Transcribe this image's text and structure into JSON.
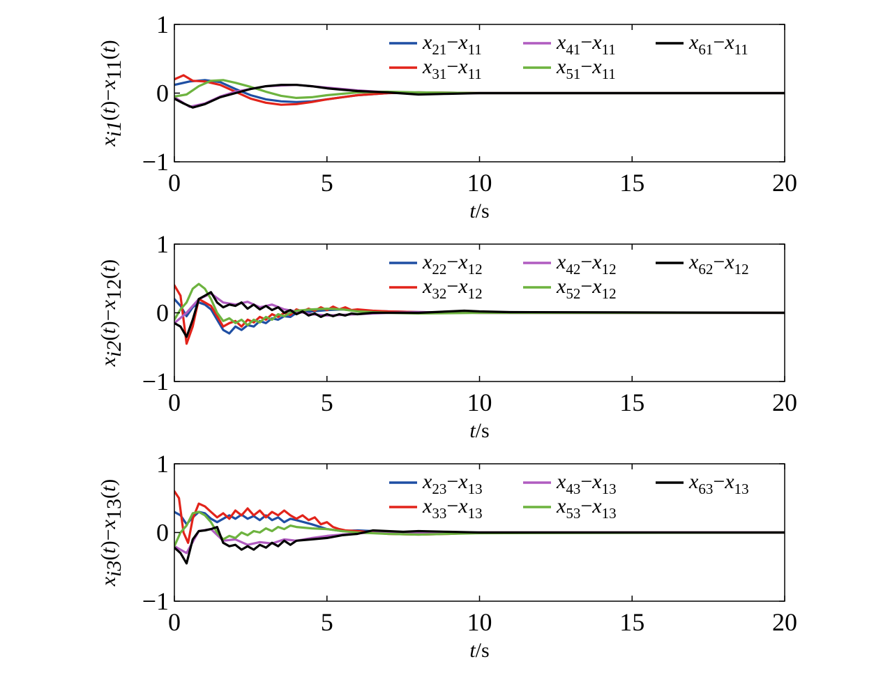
{
  "chart_data": [
    {
      "type": "line",
      "xlabel": {
        "var": "t",
        "unit": "/s"
      },
      "ylabel": {
        "a": "x",
        "a_sub": "i1",
        "b": "(t)−x",
        "b_sub": "11",
        "c": "(t)"
      },
      "xlim": [
        0,
        20
      ],
      "ylim": [
        -1,
        1
      ],
      "xticks": [
        "0",
        "5",
        "10",
        "15",
        "20"
      ],
      "yticks": [
        "−1",
        "0",
        "1"
      ],
      "legend_position": "top-right",
      "series": [
        {
          "name": "x21−x11",
          "sub_a": "21",
          "sub_b": "11",
          "color": "#1f4fa3",
          "x": [
            0,
            0.5,
            1,
            1.5,
            2,
            2.5,
            3,
            3.5,
            4,
            4.5,
            5,
            5.5,
            6,
            7,
            8,
            10,
            20
          ],
          "y": [
            0.12,
            0.17,
            0.19,
            0.16,
            0.06,
            -0.03,
            -0.09,
            -0.12,
            -0.13,
            -0.12,
            -0.09,
            -0.06,
            -0.03,
            0,
            0.01,
            0,
            0
          ]
        },
        {
          "name": "x31−x11",
          "sub_a": "31",
          "sub_b": "11",
          "color": "#e2231a",
          "x": [
            0,
            0.3,
            0.6,
            1,
            1.5,
            2,
            2.5,
            3,
            3.5,
            4,
            4.5,
            5,
            5.5,
            6,
            7,
            8,
            10,
            20
          ],
          "y": [
            0.2,
            0.26,
            0.18,
            0.17,
            0.12,
            0.02,
            -0.08,
            -0.14,
            -0.17,
            -0.16,
            -0.13,
            -0.09,
            -0.06,
            -0.03,
            0,
            0.01,
            0,
            0
          ]
        },
        {
          "name": "x41−x11",
          "sub_a": "41",
          "sub_b": "11",
          "color": "#b05cc0",
          "x": [
            0,
            0.5,
            1,
            1.5,
            2,
            3,
            4,
            5,
            6,
            7,
            8,
            10,
            20
          ],
          "y": [
            -0.06,
            -0.2,
            -0.15,
            -0.05,
            0.02,
            0.1,
            0.12,
            0.08,
            0.04,
            0.01,
            -0.01,
            0,
            0
          ]
        },
        {
          "name": "x51−x11",
          "sub_a": "51",
          "sub_b": "11",
          "color": "#6db33f",
          "x": [
            0,
            0.4,
            0.8,
            1.2,
            1.6,
            2,
            2.5,
            3,
            3.5,
            4,
            4.5,
            5,
            5.5,
            6,
            7,
            8,
            10,
            20
          ],
          "y": [
            -0.05,
            -0.02,
            0.1,
            0.18,
            0.19,
            0.15,
            0.09,
            0.02,
            -0.04,
            -0.07,
            -0.06,
            -0.03,
            -0.01,
            0.01,
            0.02,
            0.01,
            0,
            0
          ]
        },
        {
          "name": "x61−x11",
          "sub_a": "61",
          "sub_b": "11",
          "color": "#000000",
          "x": [
            0,
            0.3,
            0.6,
            1,
            1.5,
            2,
            2.5,
            3,
            3.5,
            4,
            4.5,
            5,
            5.5,
            6,
            7,
            8,
            9,
            10,
            20
          ],
          "y": [
            -0.08,
            -0.15,
            -0.21,
            -0.16,
            -0.06,
            0,
            0.06,
            0.1,
            0.12,
            0.12,
            0.1,
            0.07,
            0.05,
            0.03,
            0.01,
            -0.02,
            -0.01,
            0,
            0
          ]
        }
      ]
    },
    {
      "type": "line",
      "xlabel": {
        "var": "t",
        "unit": "/s"
      },
      "ylabel": {
        "a": "x",
        "a_sub": "i2",
        "b": "(t)−x",
        "b_sub": "12",
        "c": "(t)"
      },
      "xlim": [
        0,
        20
      ],
      "ylim": [
        -1,
        1
      ],
      "xticks": [
        "0",
        "5",
        "10",
        "15",
        "20"
      ],
      "yticks": [
        "−1",
        "0",
        "1"
      ],
      "legend_position": "top-right",
      "series": [
        {
          "name": "x22−x12",
          "sub_a": "22",
          "sub_b": "12",
          "color": "#1f4fa3",
          "x": [
            0,
            0.2,
            0.4,
            0.6,
            0.8,
            1,
            1.2,
            1.4,
            1.6,
            1.8,
            2,
            2.2,
            2.4,
            2.6,
            2.8,
            3,
            3.2,
            3.4,
            3.6,
            3.8,
            4,
            4.5,
            5,
            5.5,
            6,
            7,
            8,
            10,
            20
          ],
          "y": [
            0.2,
            0.1,
            -0.05,
            0.08,
            0.15,
            0.12,
            0.05,
            -0.1,
            -0.25,
            -0.3,
            -0.2,
            -0.25,
            -0.18,
            -0.2,
            -0.12,
            -0.15,
            -0.08,
            -0.1,
            -0.05,
            -0.06,
            0,
            0.02,
            0.04,
            0.05,
            0.03,
            0.02,
            0.01,
            0,
            0
          ]
        },
        {
          "name": "x32−x12",
          "sub_a": "32",
          "sub_b": "12",
          "color": "#e2231a",
          "x": [
            0,
            0.2,
            0.4,
            0.6,
            0.8,
            1,
            1.2,
            1.4,
            1.6,
            1.8,
            2,
            2.2,
            2.4,
            2.6,
            2.8,
            3,
            3.2,
            3.4,
            3.6,
            3.8,
            4,
            4.2,
            4.4,
            4.6,
            4.8,
            5,
            5.2,
            5.4,
            5.6,
            5.8,
            6,
            6.5,
            7,
            8,
            10,
            20
          ],
          "y": [
            0.4,
            0.25,
            -0.45,
            -0.2,
            0.2,
            0.15,
            0.1,
            -0.05,
            -0.2,
            -0.15,
            -0.12,
            -0.2,
            -0.1,
            -0.14,
            -0.06,
            -0.1,
            -0.02,
            -0.06,
            0,
            -0.03,
            0.05,
            0.02,
            0.06,
            0.03,
            0.08,
            0.04,
            0.09,
            0.05,
            0.08,
            0.04,
            0.05,
            0.03,
            0.02,
            0.01,
            0,
            0
          ]
        },
        {
          "name": "x42−x12",
          "sub_a": "42",
          "sub_b": "12",
          "color": "#b05cc0",
          "x": [
            0,
            0.4,
            0.8,
            1.2,
            1.6,
            2,
            2.4,
            2.8,
            3.2,
            3.6,
            4,
            4.5,
            5,
            5.5,
            6,
            7,
            8,
            10,
            20
          ],
          "y": [
            -0.15,
            0,
            0.2,
            0.28,
            0.15,
            0.12,
            0.16,
            0.08,
            0.12,
            0.05,
            0.02,
            -0.02,
            -0.04,
            -0.03,
            -0.02,
            0,
            0.01,
            0,
            0
          ]
        },
        {
          "name": "x52−x12",
          "sub_a": "52",
          "sub_b": "12",
          "color": "#6db33f",
          "x": [
            0,
            0.2,
            0.4,
            0.6,
            0.8,
            1,
            1.2,
            1.4,
            1.6,
            1.8,
            2,
            2.2,
            2.4,
            2.6,
            2.8,
            3,
            3.2,
            3.4,
            3.6,
            3.8,
            4,
            4.5,
            5,
            5.5,
            6,
            7,
            8,
            10,
            20
          ],
          "y": [
            -0.1,
            0.05,
            0.15,
            0.35,
            0.42,
            0.35,
            0.2,
            0,
            -0.12,
            -0.08,
            -0.15,
            -0.1,
            -0.18,
            -0.1,
            -0.14,
            -0.06,
            -0.1,
            -0.02,
            -0.05,
            0,
            0.03,
            0.05,
            0.06,
            0.05,
            0.02,
            0,
            -0.01,
            0,
            0
          ]
        },
        {
          "name": "x62−x12",
          "sub_a": "62",
          "sub_b": "12",
          "color": "#000000",
          "x": [
            0,
            0.2,
            0.4,
            0.6,
            0.8,
            1,
            1.2,
            1.4,
            1.6,
            1.8,
            2,
            2.2,
            2.4,
            2.6,
            2.8,
            3,
            3.2,
            3.4,
            3.6,
            3.8,
            4,
            4.2,
            4.4,
            4.6,
            4.8,
            5,
            5.2,
            5.4,
            5.6,
            5.8,
            6,
            6.5,
            7,
            8,
            9,
            9.5,
            10,
            11,
            20
          ],
          "y": [
            -0.15,
            -0.2,
            -0.35,
            -0.1,
            0.2,
            0.25,
            0.3,
            0.15,
            0.08,
            0.12,
            0.1,
            0.15,
            0.06,
            0.12,
            0.05,
            0.1,
            0.04,
            0.08,
            0,
            0.04,
            -0.02,
            0.02,
            -0.04,
            -0.01,
            -0.06,
            -0.02,
            -0.05,
            -0.02,
            -0.04,
            -0.01,
            -0.02,
            0,
            0,
            0,
            0.02,
            0.03,
            0.02,
            0.01,
            0
          ]
        }
      ]
    },
    {
      "type": "line",
      "xlabel": {
        "var": "t",
        "unit": "/s"
      },
      "ylabel": {
        "a": "x",
        "a_sub": "i3",
        "b": "(t)−x",
        "b_sub": "13",
        "c": "(t)"
      },
      "xlim": [
        0,
        20
      ],
      "ylim": [
        -1,
        1
      ],
      "xticks": [
        "0",
        "5",
        "10",
        "15",
        "20"
      ],
      "yticks": [
        "−1",
        "0",
        "1"
      ],
      "legend_position": "top-right",
      "series": [
        {
          "name": "x23−x13",
          "sub_a": "23",
          "sub_b": "13",
          "color": "#1f4fa3",
          "x": [
            0,
            0.2,
            0.4,
            0.6,
            0.8,
            1,
            1.2,
            1.4,
            1.6,
            1.8,
            2,
            2.2,
            2.4,
            2.6,
            2.8,
            3,
            3.2,
            3.4,
            3.6,
            3.8,
            4,
            4.5,
            5,
            5.5,
            6,
            7,
            8,
            10,
            20
          ],
          "y": [
            0.3,
            0.25,
            0.12,
            0.22,
            0.3,
            0.28,
            0.2,
            0.15,
            0.2,
            0.25,
            0.2,
            0.26,
            0.2,
            0.24,
            0.18,
            0.25,
            0.18,
            0.22,
            0.15,
            0.2,
            0.18,
            0.12,
            0.05,
            0.02,
            0.03,
            0.01,
            0,
            0,
            0
          ]
        },
        {
          "name": "x33−x13",
          "sub_a": "33",
          "sub_b": "13",
          "color": "#e2231a",
          "x": [
            0,
            0.15,
            0.3,
            0.45,
            0.6,
            0.8,
            1,
            1.2,
            1.4,
            1.6,
            1.8,
            2,
            2.2,
            2.4,
            2.6,
            2.8,
            3,
            3.2,
            3.4,
            3.6,
            3.8,
            4,
            4.2,
            4.4,
            4.6,
            4.8,
            5,
            5.2,
            5.4,
            5.6,
            6,
            6.5,
            7,
            8,
            9,
            10,
            20
          ],
          "y": [
            0.6,
            0.5,
            0,
            -0.15,
            0.2,
            0.42,
            0.38,
            0.3,
            0.22,
            0.28,
            0.2,
            0.32,
            0.25,
            0.35,
            0.25,
            0.32,
            0.22,
            0.3,
            0.25,
            0.32,
            0.25,
            0.2,
            0.25,
            0.18,
            0.22,
            0.12,
            0.15,
            0.08,
            0.05,
            0.03,
            0.02,
            0,
            -0.02,
            -0.03,
            -0.02,
            0,
            0
          ]
        },
        {
          "name": "x43−x13",
          "sub_a": "43",
          "sub_b": "13",
          "color": "#b05cc0",
          "x": [
            0,
            0.4,
            0.8,
            1.2,
            1.6,
            2,
            2.4,
            2.8,
            3.2,
            3.6,
            4,
            4.5,
            5,
            5.5,
            6,
            7,
            8,
            10,
            20
          ],
          "y": [
            -0.2,
            -0.3,
            0.02,
            0.05,
            -0.12,
            -0.1,
            -0.18,
            -0.14,
            -0.16,
            -0.1,
            -0.12,
            -0.08,
            -0.05,
            -0.03,
            -0.01,
            0,
            0,
            0,
            0
          ]
        },
        {
          "name": "x53−x13",
          "sub_a": "53",
          "sub_b": "13",
          "color": "#6db33f",
          "x": [
            0,
            0.2,
            0.4,
            0.6,
            0.8,
            1,
            1.2,
            1.4,
            1.6,
            1.8,
            2,
            2.2,
            2.4,
            2.6,
            2.8,
            3,
            3.2,
            3.4,
            3.6,
            3.8,
            4,
            4.5,
            5,
            5.5,
            6,
            7,
            8,
            10,
            20
          ],
          "y": [
            -0.2,
            0,
            0.1,
            0.28,
            0.3,
            0.25,
            0.15,
            0,
            -0.1,
            -0.05,
            -0.08,
            0,
            -0.04,
            0.02,
            0,
            0.06,
            0.02,
            0.08,
            0.05,
            0.1,
            0.08,
            0.06,
            0.05,
            0.02,
            0,
            -0.02,
            -0.03,
            -0.01,
            0
          ]
        },
        {
          "name": "x63−x13",
          "sub_a": "63",
          "sub_b": "13",
          "color": "#000000",
          "x": [
            0,
            0.2,
            0.4,
            0.6,
            0.8,
            1,
            1.2,
            1.4,
            1.6,
            1.8,
            2,
            2.2,
            2.4,
            2.6,
            2.8,
            3,
            3.2,
            3.4,
            3.6,
            3.8,
            4,
            4.5,
            5,
            5.5,
            6,
            6.5,
            7,
            7.5,
            8,
            9,
            10,
            20
          ],
          "y": [
            -0.22,
            -0.3,
            -0.45,
            -0.1,
            0.02,
            0.03,
            0.05,
            0.08,
            -0.15,
            -0.2,
            -0.18,
            -0.25,
            -0.2,
            -0.25,
            -0.18,
            -0.22,
            -0.15,
            -0.2,
            -0.12,
            -0.18,
            -0.12,
            -0.1,
            -0.08,
            -0.04,
            -0.02,
            0.03,
            0.02,
            0.01,
            0.02,
            0.01,
            0,
            0
          ]
        }
      ]
    }
  ]
}
